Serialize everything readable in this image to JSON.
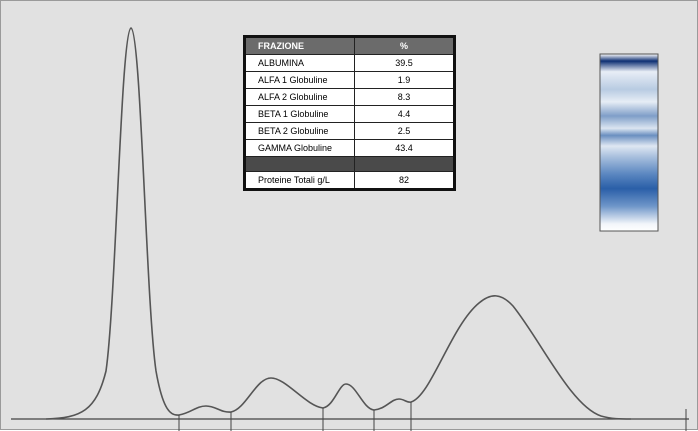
{
  "table": {
    "header": [
      "FRAZIONE",
      "%"
    ],
    "rows": [
      [
        "ALBUMINA",
        39.5
      ],
      [
        "ALFA 1 Globuline",
        1.9
      ],
      [
        "ALFA 2 Globuline",
        8.3
      ],
      [
        "BETA 1 Globuline",
        4.4
      ],
      [
        "BETA 2 Globuline",
        2.5
      ],
      [
        "GAMMA Globuline",
        43.4
      ]
    ],
    "total": [
      "Proteine Totali g/L",
      82
    ]
  }
}
